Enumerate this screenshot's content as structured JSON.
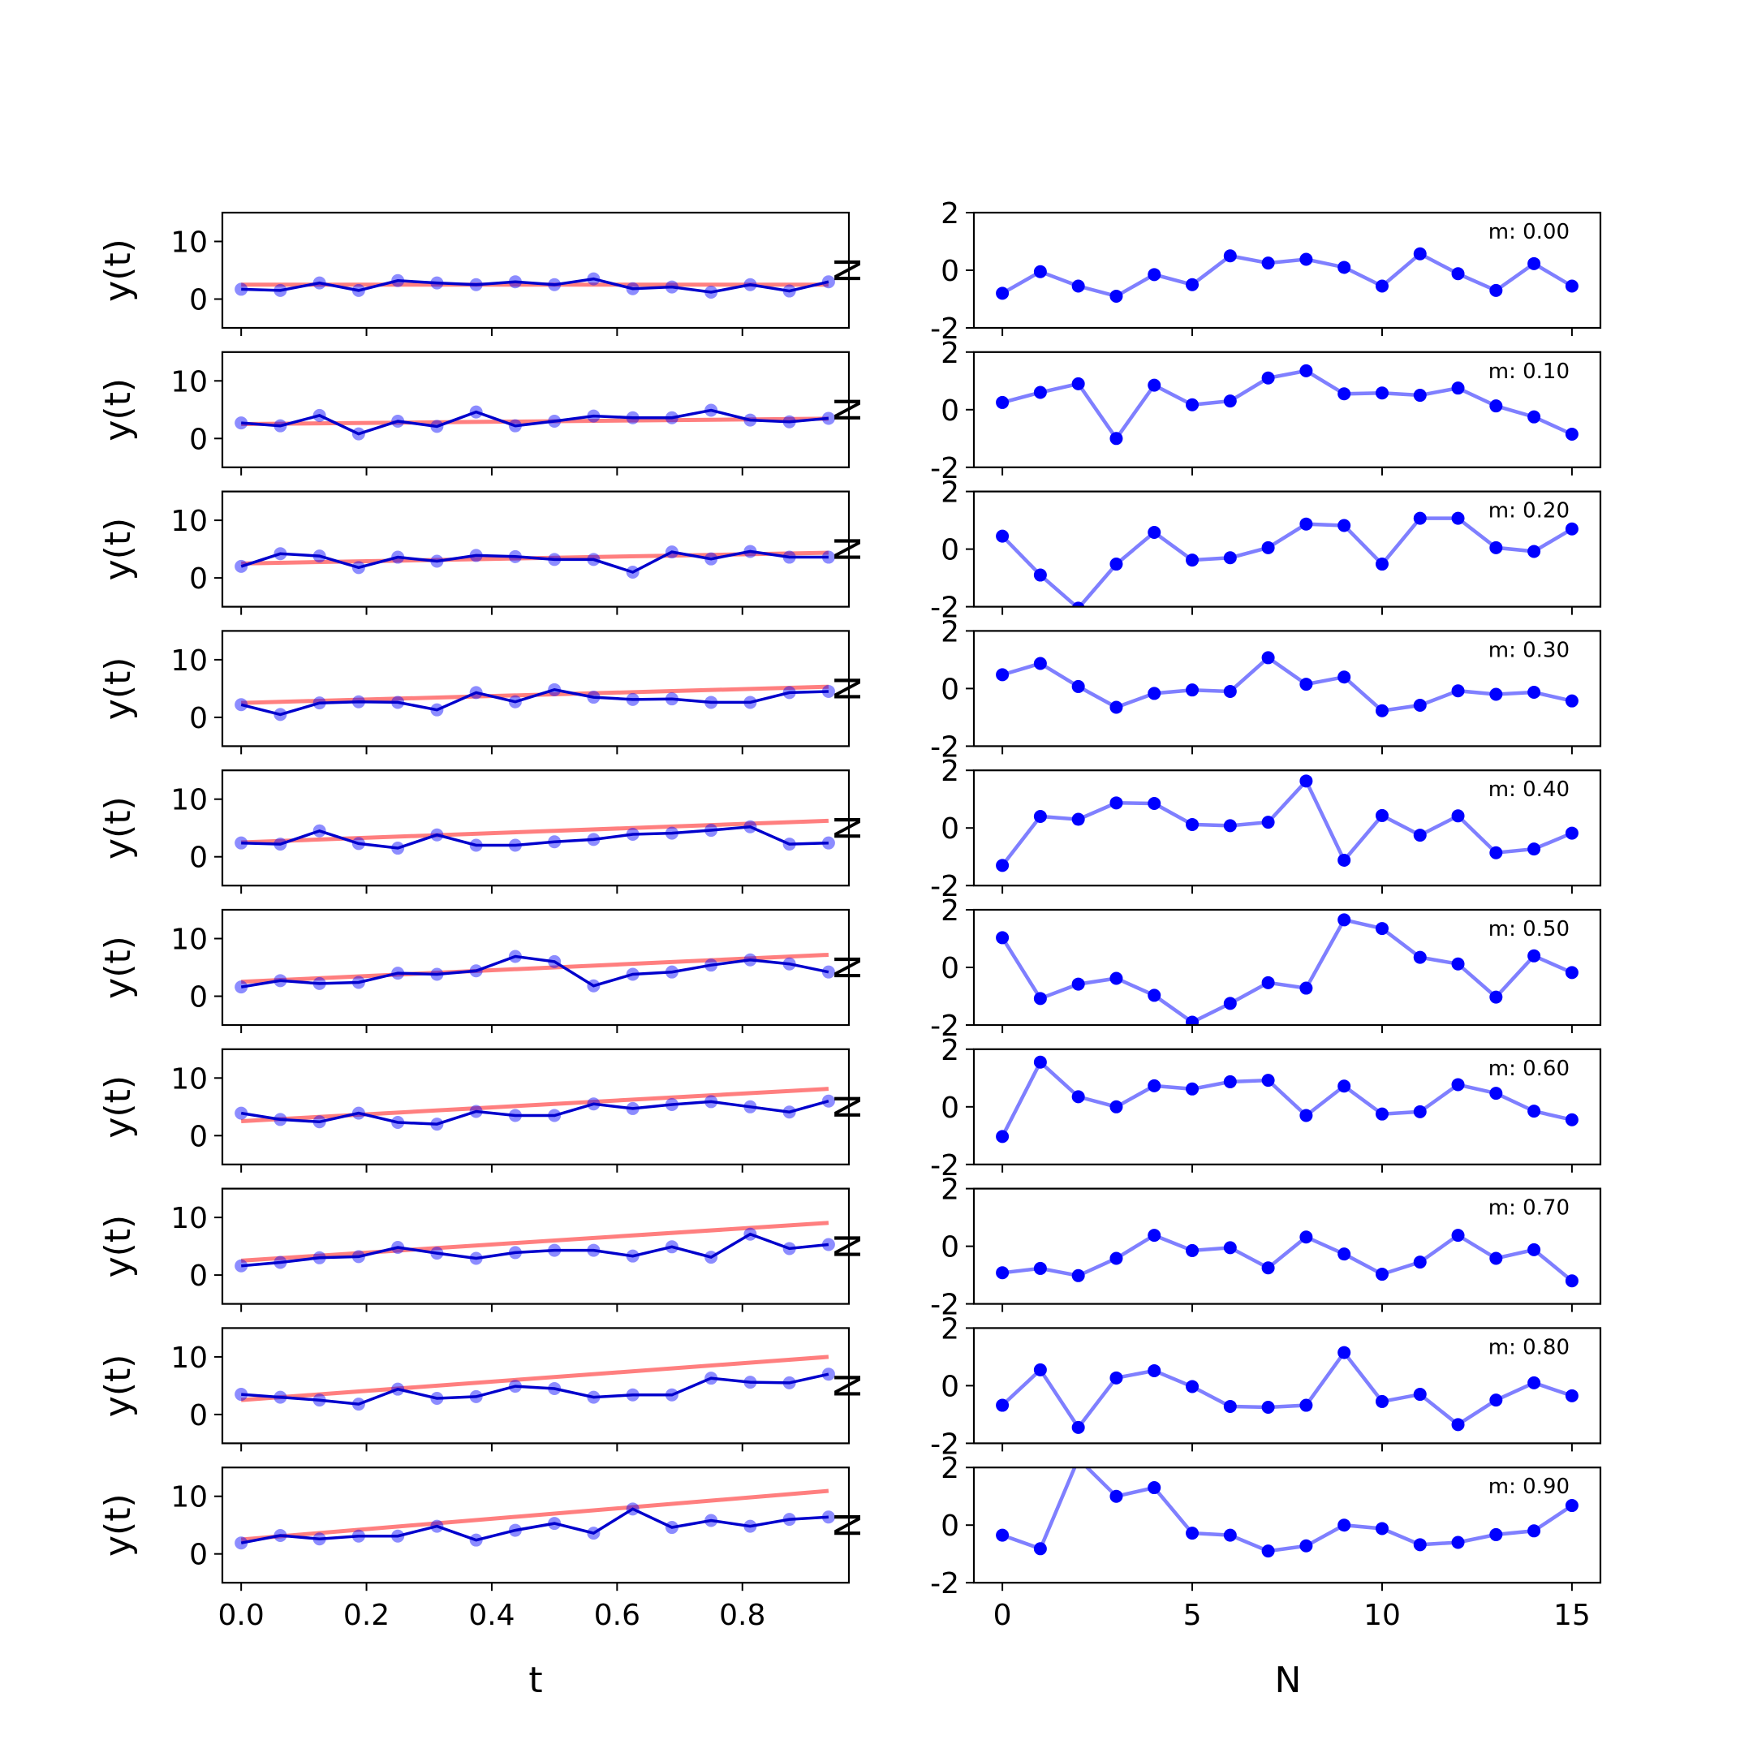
{
  "figure": {
    "left_xlabel": "t",
    "right_xlabel": "N",
    "left_ylabel": "y(t)",
    "right_ylabel": "N"
  },
  "colors": {
    "fit_line": "#ff0000",
    "data_line": "#0000cc",
    "data_points": "#0000ff",
    "noise": "#0000ff"
  },
  "chart_data": [
    {
      "type": "line",
      "panel": "left",
      "xlabel": "t",
      "ylabel": "y(t)",
      "xlim": [
        -0.03,
        0.97
      ],
      "ylim": [
        -5,
        15
      ],
      "xticks": [
        0.0,
        0.2,
        0.4,
        0.6,
        0.8
      ],
      "xtick_labels": [
        "0.0",
        "0.2",
        "0.4",
        "0.6",
        "0.8"
      ],
      "yticks": [
        0,
        10
      ],
      "x": [
        0.0,
        0.0625,
        0.125,
        0.1875,
        0.25,
        0.3125,
        0.375,
        0.4375,
        0.5,
        0.5625,
        0.625,
        0.6875,
        0.75,
        0.8125,
        0.875,
        0.9375
      ],
      "fit_intercept": 2.5,
      "series": [
        {
          "slope": 0.0,
          "values": [
            1.7,
            1.5,
            2.8,
            1.5,
            3.2,
            2.8,
            2.5,
            3.0,
            2.5,
            3.5,
            1.8,
            2.1,
            1.2,
            2.5,
            1.4,
            3.0
          ]
        },
        {
          "slope": 1.0,
          "values": [
            2.7,
            2.2,
            4.0,
            0.8,
            3.0,
            2.1,
            4.6,
            2.2,
            3.0,
            3.9,
            3.6,
            3.6,
            4.9,
            3.2,
            2.9,
            3.5
          ]
        },
        {
          "slope": 2.0,
          "values": [
            2.0,
            4.2,
            3.8,
            1.8,
            3.6,
            2.9,
            3.9,
            3.7,
            3.2,
            3.2,
            1.0,
            4.5,
            3.3,
            4.6,
            3.6,
            3.6
          ]
        },
        {
          "slope": 3.0,
          "values": [
            2.2,
            0.5,
            2.5,
            2.7,
            2.6,
            1.3,
            4.3,
            2.7,
            4.8,
            3.5,
            3.1,
            3.2,
            2.6,
            2.6,
            4.3,
            4.5
          ]
        },
        {
          "slope": 4.0,
          "values": [
            2.4,
            2.2,
            4.5,
            2.3,
            1.5,
            3.8,
            2.0,
            2.0,
            2.6,
            3.0,
            3.9,
            4.1,
            4.6,
            5.2,
            2.2,
            2.4
          ]
        },
        {
          "slope": 5.0,
          "values": [
            1.6,
            2.7,
            2.2,
            2.4,
            4.0,
            3.8,
            4.4,
            6.9,
            6.0,
            1.8,
            3.8,
            4.2,
            5.4,
            6.3,
            5.6,
            4.2
          ]
        },
        {
          "slope": 6.0,
          "values": [
            3.9,
            2.8,
            2.4,
            3.9,
            2.3,
            2.0,
            4.2,
            3.5,
            3.5,
            5.5,
            4.7,
            5.4,
            5.9,
            5.0,
            4.1,
            6.0
          ]
        },
        {
          "slope": 7.0,
          "values": [
            1.6,
            2.2,
            3.0,
            3.2,
            4.8,
            3.8,
            2.9,
            3.9,
            4.3,
            4.3,
            3.3,
            4.9,
            3.1,
            7.1,
            4.6,
            5.3
          ]
        },
        {
          "slope": 8.0,
          "values": [
            3.5,
            3.0,
            2.5,
            1.8,
            4.4,
            2.8,
            3.1,
            4.9,
            4.5,
            3.0,
            3.4,
            3.4,
            6.3,
            5.6,
            5.5,
            7.0
          ]
        },
        {
          "slope": 9.0,
          "values": [
            1.9,
            3.2,
            2.6,
            3.1,
            3.1,
            4.8,
            2.4,
            4.1,
            5.3,
            3.6,
            7.8,
            4.6,
            5.8,
            4.8,
            6.0,
            6.4
          ]
        }
      ]
    },
    {
      "type": "line",
      "panel": "right",
      "xlabel": "N",
      "ylabel": "N",
      "xlim": [
        -0.75,
        15.75
      ],
      "ylim": [
        -2,
        2
      ],
      "xticks": [
        0,
        5,
        10,
        15
      ],
      "yticks": [
        -2,
        0,
        2
      ],
      "x": [
        0,
        1,
        2,
        3,
        4,
        5,
        6,
        7,
        8,
        9,
        10,
        11,
        12,
        13,
        14,
        15
      ],
      "series": [
        {
          "label": "m: 0.00",
          "values": [
            -0.8,
            -0.05,
            -0.55,
            -0.9,
            -0.15,
            -0.5,
            0.5,
            0.25,
            0.38,
            0.1,
            -0.55,
            0.57,
            -0.12,
            -0.7,
            0.23,
            -0.55
          ]
        },
        {
          "label": "m: 0.10",
          "values": [
            0.25,
            0.6,
            0.9,
            -1.0,
            0.85,
            0.17,
            0.3,
            1.1,
            1.35,
            0.55,
            0.58,
            0.5,
            0.75,
            0.13,
            -0.25,
            -0.85
          ]
        },
        {
          "label": "m: 0.20",
          "values": [
            0.45,
            -0.9,
            -2.05,
            -0.52,
            0.58,
            -0.38,
            -0.3,
            0.05,
            0.87,
            0.82,
            -0.52,
            1.07,
            1.07,
            0.05,
            -0.08,
            0.7
          ]
        },
        {
          "label": "m: 0.30",
          "values": [
            0.48,
            0.87,
            0.07,
            -0.65,
            -0.17,
            -0.05,
            -0.1,
            1.07,
            0.15,
            0.4,
            -0.77,
            -0.58,
            -0.08,
            -0.2,
            -0.13,
            -0.43
          ]
        },
        {
          "label": "m: 0.40",
          "values": [
            -1.3,
            0.4,
            0.3,
            0.87,
            0.85,
            0.12,
            0.08,
            0.2,
            1.63,
            -1.12,
            0.43,
            -0.25,
            0.42,
            -0.86,
            -0.73,
            -0.18
          ]
        },
        {
          "label": "m: 0.50",
          "values": [
            1.03,
            -1.08,
            -0.58,
            -0.38,
            -0.97,
            -1.9,
            -1.25,
            -0.53,
            -0.72,
            1.65,
            1.35,
            0.35,
            0.12,
            -1.03,
            0.4,
            -0.18
          ]
        },
        {
          "label": "m: 0.60",
          "values": [
            -1.03,
            1.55,
            0.35,
            0.0,
            0.73,
            0.62,
            0.87,
            0.92,
            -0.3,
            0.72,
            -0.25,
            -0.17,
            0.77,
            0.47,
            -0.15,
            -0.45
          ]
        },
        {
          "label": "m: 0.70",
          "values": [
            -0.92,
            -0.77,
            -1.02,
            -0.42,
            0.38,
            -0.15,
            -0.05,
            -0.75,
            0.32,
            -0.27,
            -0.97,
            -0.55,
            0.38,
            -0.42,
            -0.12,
            -1.2
          ]
        },
        {
          "label": "m: 0.80",
          "values": [
            -0.68,
            0.55,
            -1.45,
            0.27,
            0.52,
            -0.03,
            -0.72,
            -0.75,
            -0.68,
            1.15,
            -0.55,
            -0.3,
            -1.35,
            -0.5,
            0.1,
            -0.35
          ]
        },
        {
          "label": "m: 0.90",
          "values": [
            -0.35,
            -0.82,
            2.3,
            1.0,
            1.3,
            -0.28,
            -0.35,
            -0.9,
            -0.72,
            0.0,
            -0.12,
            -0.68,
            -0.6,
            -0.33,
            -0.2,
            0.68
          ]
        }
      ]
    }
  ]
}
